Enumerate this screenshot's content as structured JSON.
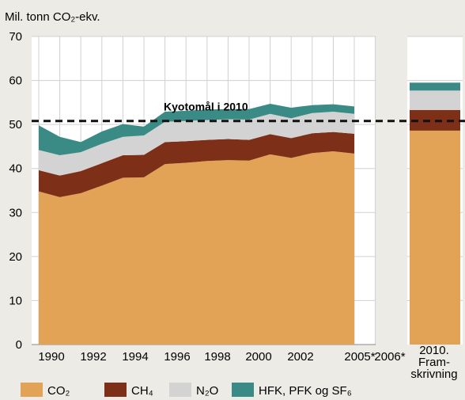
{
  "chart_data": {
    "type": "area",
    "stacked": true,
    "unit_label": "Mil. tonn CO₂-ekv.",
    "ylim": [
      0,
      70
    ],
    "y_ticks": [
      0,
      10,
      20,
      30,
      40,
      50,
      60,
      70
    ],
    "x": [
      1990,
      1991,
      1992,
      1993,
      1994,
      1995,
      1996,
      1997,
      1998,
      1999,
      2000,
      2001,
      2002,
      2003,
      2004,
      2005,
      2006
    ],
    "x_tick_labels": [
      "1990",
      "1992",
      "1994",
      "1996",
      "1998",
      "2000",
      "2002",
      "2005*",
      "2006*"
    ],
    "series": [
      {
        "name": "CO₂",
        "color": "#e2a356",
        "values": [
          34.8,
          33.5,
          34.4,
          36.1,
          37.9,
          38.0,
          41.0,
          41.3,
          41.7,
          41.9,
          41.8,
          43.2,
          42.4,
          43.5,
          43.9,
          43.4,
          null
        ]
      },
      {
        "name": "CH₄",
        "color": "#7d2f18",
        "values": [
          4.8,
          4.9,
          5.0,
          5.1,
          5.1,
          5.1,
          5.0,
          4.9,
          4.8,
          4.8,
          4.7,
          4.6,
          4.5,
          4.5,
          4.4,
          4.5,
          null
        ]
      },
      {
        "name": "N₂O",
        "color": "#d3d3d3",
        "values": [
          4.6,
          4.6,
          4.3,
          4.4,
          4.2,
          4.4,
          4.6,
          4.6,
          4.5,
          4.5,
          4.6,
          4.6,
          4.5,
          4.6,
          4.6,
          4.5,
          null
        ]
      },
      {
        "name": "HFK, PFK og SF₆",
        "color": "#3a8a86",
        "values": [
          5.6,
          4.2,
          2.3,
          2.8,
          2.9,
          2.0,
          2.3,
          2.3,
          2.4,
          2.3,
          2.4,
          2.3,
          2.4,
          1.8,
          1.7,
          1.7,
          null
        ]
      }
    ],
    "projection": {
      "label_lines": [
        "2010.",
        "Fram-",
        "skrivning"
      ],
      "values": [
        48.6,
        4.7,
        4.4,
        1.8
      ]
    },
    "reference_line": {
      "label": "Kyotomål i 2010",
      "value": 50.8
    }
  }
}
